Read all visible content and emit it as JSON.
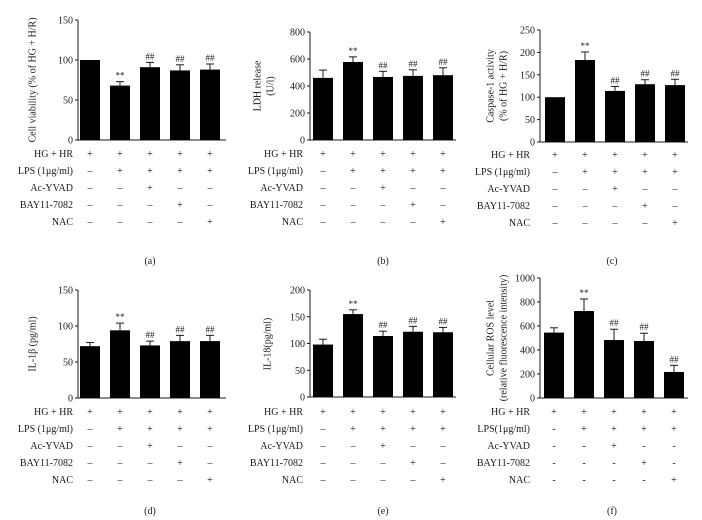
{
  "chart_data": [
    {
      "type": "bar",
      "panel": "(a)",
      "ylabel": [
        "Cell viability (% of HG + H/R)"
      ],
      "ylim": [
        0,
        150
      ],
      "yticks": [
        0,
        50,
        100,
        150
      ],
      "values": [
        100,
        68,
        91,
        87,
        88
      ],
      "errors": [
        0,
        5,
        6,
        7,
        7
      ],
      "annotations": [
        null,
        "**",
        "##",
        "##",
        "##"
      ],
      "conditions": [
        {
          "label": "HG + HR",
          "signs": [
            "+",
            "+",
            "+",
            "+",
            "+"
          ]
        },
        {
          "label": "LPS (1μg/ml)",
          "signs": [
            "–",
            "+",
            "+",
            "+",
            "+"
          ]
        },
        {
          "label": "Ac-YVAD",
          "signs": [
            "–",
            "–",
            "+",
            "–",
            "–"
          ]
        },
        {
          "label": "BAY11-7082",
          "signs": [
            "–",
            "–",
            "–",
            "+",
            "–"
          ]
        },
        {
          "label": "NAC",
          "signs": [
            "–",
            "–",
            "–",
            "–",
            "+"
          ]
        }
      ]
    },
    {
      "type": "bar",
      "panel": "(b)",
      "ylabel": [
        "LDH release",
        "(U/l)"
      ],
      "ylim": [
        0,
        800
      ],
      "yticks": [
        0,
        200,
        400,
        600,
        800
      ],
      "values": [
        460,
        578,
        467,
        475,
        480
      ],
      "errors": [
        58,
        38,
        42,
        45,
        55
      ],
      "annotations": [
        null,
        "**",
        "##",
        "##",
        "##"
      ],
      "conditions": [
        {
          "label": "HG + HR",
          "signs": [
            "+",
            "+",
            "+",
            "+",
            "+"
          ]
        },
        {
          "label": "LPS (1μg/ml)",
          "signs": [
            "–",
            "+",
            "+",
            "+",
            "+"
          ]
        },
        {
          "label": "Ac-YVAD",
          "signs": [
            "–",
            "–",
            "+",
            "–",
            "–"
          ]
        },
        {
          "label": "BAY11-7082",
          "signs": [
            "–",
            "–",
            "–",
            "+",
            "–"
          ]
        },
        {
          "label": "NAC",
          "signs": [
            "–",
            "–",
            "–",
            "–",
            "+"
          ]
        }
      ]
    },
    {
      "type": "bar",
      "panel": "(c)",
      "ylabel": [
        "Caspase-1 activity",
        "(% of HG + H/R)"
      ],
      "ylim": [
        0,
        250
      ],
      "yticks": [
        0,
        50,
        100,
        150,
        200,
        250
      ],
      "values": [
        100,
        183,
        114,
        129,
        127
      ],
      "errors": [
        0,
        18,
        10,
        10,
        13
      ],
      "annotations": [
        null,
        "**",
        "##",
        "##",
        "##"
      ],
      "conditions": [
        {
          "label": "HG + HR",
          "signs": [
            "+",
            "+",
            "+",
            "+",
            "+"
          ]
        },
        {
          "label": "LPS (1μg/ml)",
          "signs": [
            "–",
            "+",
            "+",
            "+",
            "+"
          ]
        },
        {
          "label": "Ac-YVAD",
          "signs": [
            "–",
            "–",
            "+",
            "–",
            "–"
          ]
        },
        {
          "label": "BAY11-7082",
          "signs": [
            "–",
            "–",
            "–",
            "+",
            "–"
          ]
        },
        {
          "label": "NAC",
          "signs": [
            "–",
            "–",
            "–",
            "–",
            "+"
          ]
        }
      ]
    },
    {
      "type": "bar",
      "panel": "(d)",
      "ylabel": [
        "IL-1β (pg/ml)"
      ],
      "ylim": [
        0,
        150
      ],
      "yticks": [
        0,
        50,
        100,
        150
      ],
      "values": [
        72,
        94,
        73,
        79,
        79
      ],
      "errors": [
        5,
        10,
        6,
        8,
        8
      ],
      "annotations": [
        null,
        "**",
        "##",
        "##",
        "##"
      ],
      "conditions": [
        {
          "label": "HG + HR",
          "signs": [
            "+",
            "+",
            "+",
            "+",
            "+"
          ]
        },
        {
          "label": "LPS (1μg/ml)",
          "signs": [
            "–",
            "+",
            "+",
            "+",
            "+"
          ]
        },
        {
          "label": "Ac-YVAD",
          "signs": [
            "–",
            "–",
            "+",
            "–",
            "–"
          ]
        },
        {
          "label": "BAY11-7082",
          "signs": [
            "–",
            "–",
            "–",
            "+",
            "–"
          ]
        },
        {
          "label": "NAC",
          "signs": [
            "–",
            "–",
            "–",
            "–",
            "+"
          ]
        }
      ]
    },
    {
      "type": "bar",
      "panel": "(e)",
      "ylabel": [
        "IL-18(pg/ml)"
      ],
      "ylim": [
        0,
        200
      ],
      "yticks": [
        0,
        50,
        100,
        150,
        200
      ],
      "values": [
        98,
        155,
        114,
        122,
        121
      ],
      "errors": [
        10,
        8,
        9,
        10,
        9
      ],
      "annotations": [
        null,
        "**",
        "##",
        "##",
        "##"
      ],
      "conditions": [
        {
          "label": "HG + HR",
          "signs": [
            "+",
            "+",
            "+",
            "+",
            "+"
          ]
        },
        {
          "label": "LPS (1μg/ml)",
          "signs": [
            "–",
            "+",
            "+",
            "+",
            "+"
          ]
        },
        {
          "label": "Ac-YVAD",
          "signs": [
            "–",
            "–",
            "+",
            "–",
            "–"
          ]
        },
        {
          "label": "BAY11-7082",
          "signs": [
            "–",
            "–",
            "–",
            "+",
            "–"
          ]
        },
        {
          "label": "NAC",
          "signs": [
            "–",
            "–",
            "–",
            "–",
            "+"
          ]
        }
      ]
    },
    {
      "type": "bar",
      "panel": "(f)",
      "ylabel": [
        "Cellular ROS level",
        "(relative fluorescence intensity)"
      ],
      "ylim": [
        0,
        1000
      ],
      "yticks": [
        0,
        200,
        400,
        600,
        800,
        1000
      ],
      "values": [
        545,
        725,
        483,
        475,
        217
      ],
      "errors": [
        40,
        100,
        90,
        65,
        55
      ],
      "annotations": [
        null,
        "**",
        "##",
        "##",
        "##"
      ],
      "conditions": [
        {
          "label": "HG + HR",
          "signs": [
            "+",
            "+",
            "+",
            "+",
            "+"
          ]
        },
        {
          "label": "LPS(1μg/ml)",
          "signs": [
            "-",
            "+",
            "+",
            "+",
            "+"
          ]
        },
        {
          "label": "Ac-YVAD",
          "signs": [
            "-",
            "-",
            "+",
            "-",
            "-"
          ]
        },
        {
          "label": "BAY11-7082",
          "signs": [
            "-",
            "-",
            "-",
            "+",
            "-"
          ]
        },
        {
          "label": "NAC",
          "signs": [
            "-",
            "-",
            "-",
            "-",
            "+"
          ]
        }
      ]
    }
  ]
}
